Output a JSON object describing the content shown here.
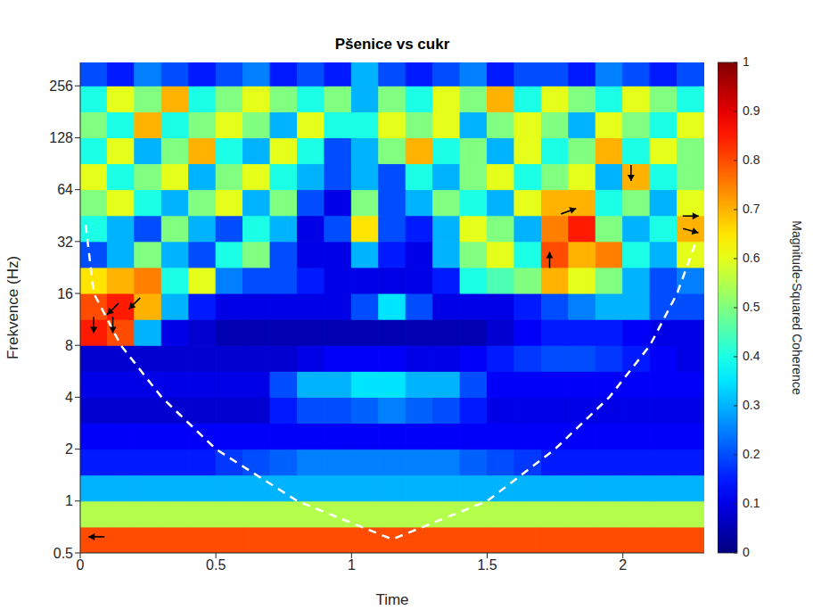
{
  "chart_data": {
    "type": "heatmap",
    "title": "Pšenice vs cukr",
    "x_label": "Time",
    "y_label": "Frekvence (Hz)",
    "log": "y",
    "xlim": [
      0,
      2.3
    ],
    "xticks": [
      0,
      0.5,
      1,
      1.5,
      2
    ],
    "ylim": [
      0.5,
      350
    ],
    "yticks": [
      0.5,
      1,
      2,
      4,
      8,
      16,
      32,
      64,
      128,
      256
    ],
    "cells": {
      "x_edges": [
        0,
        0.1,
        0.2,
        0.3,
        0.4,
        0.5,
        0.6,
        0.7,
        0.8,
        0.9,
        1.0,
        1.1,
        1.2,
        1.3,
        1.4,
        1.5,
        1.6,
        1.7,
        1.8,
        1.9,
        2.0,
        2.1,
        2.2,
        2.3
      ],
      "y_edges": [
        0.5,
        0.707,
        1,
        1.414,
        2,
        2.828,
        4,
        5.657,
        8,
        11.31,
        16,
        22.63,
        32,
        45.25,
        64,
        90.51,
        128,
        181,
        256,
        362
      ],
      "values": [
        [
          0.8,
          0.8,
          0.8,
          0.8,
          0.8,
          0.8,
          0.8,
          0.8,
          0.8,
          0.8,
          0.8,
          0.8,
          0.8,
          0.8,
          0.8,
          0.8,
          0.8,
          0.8,
          0.8,
          0.8,
          0.8,
          0.8,
          0.8
        ],
        [
          0.55,
          0.55,
          0.55,
          0.55,
          0.55,
          0.55,
          0.55,
          0.55,
          0.55,
          0.55,
          0.55,
          0.55,
          0.55,
          0.55,
          0.55,
          0.55,
          0.55,
          0.55,
          0.55,
          0.55,
          0.55,
          0.55,
          0.55
        ],
        [
          0.3,
          0.3,
          0.3,
          0.3,
          0.3,
          0.3,
          0.3,
          0.3,
          0.3,
          0.3,
          0.3,
          0.3,
          0.3,
          0.3,
          0.3,
          0.3,
          0.3,
          0.3,
          0.3,
          0.3,
          0.3,
          0.3,
          0.3
        ],
        [
          0.15,
          0.15,
          0.15,
          0.15,
          0.15,
          0.18,
          0.2,
          0.22,
          0.25,
          0.25,
          0.25,
          0.25,
          0.25,
          0.25,
          0.22,
          0.2,
          0.18,
          0.15,
          0.15,
          0.15,
          0.15,
          0.15,
          0.15
        ],
        [
          0.12,
          0.12,
          0.12,
          0.12,
          0.12,
          0.12,
          0.12,
          0.12,
          0.12,
          0.12,
          0.12,
          0.12,
          0.12,
          0.12,
          0.12,
          0.12,
          0.12,
          0.12,
          0.12,
          0.12,
          0.12,
          0.12,
          0.12
        ],
        [
          0.08,
          0.08,
          0.08,
          0.08,
          0.08,
          0.08,
          0.08,
          0.15,
          0.2,
          0.2,
          0.22,
          0.25,
          0.22,
          0.2,
          0.15,
          0.1,
          0.1,
          0.1,
          0.1,
          0.1,
          0.1,
          0.1,
          0.1
        ],
        [
          0.1,
          0.1,
          0.1,
          0.1,
          0.1,
          0.1,
          0.1,
          0.2,
          0.3,
          0.3,
          0.35,
          0.35,
          0.3,
          0.3,
          0.2,
          0.12,
          0.12,
          0.12,
          0.12,
          0.12,
          0.12,
          0.12,
          0.12
        ],
        [
          0.08,
          0.08,
          0.08,
          0.08,
          0.08,
          0.08,
          0.08,
          0.08,
          0.1,
          0.12,
          0.12,
          0.12,
          0.1,
          0.1,
          0.12,
          0.15,
          0.18,
          0.2,
          0.2,
          0.18,
          0.15,
          0.12,
          0.1
        ],
        [
          0.85,
          0.8,
          0.3,
          0.1,
          0.08,
          0.05,
          0.05,
          0.05,
          0.05,
          0.05,
          0.05,
          0.05,
          0.05,
          0.05,
          0.05,
          0.08,
          0.12,
          0.15,
          0.15,
          0.15,
          0.12,
          0.1,
          0.1
        ],
        [
          0.8,
          0.85,
          0.7,
          0.3,
          0.15,
          0.1,
          0.1,
          0.1,
          0.1,
          0.1,
          0.2,
          0.35,
          0.2,
          0.1,
          0.1,
          0.1,
          0.15,
          0.2,
          0.25,
          0.3,
          0.3,
          0.2,
          0.2
        ],
        [
          0.65,
          0.7,
          0.75,
          0.4,
          0.6,
          0.25,
          0.2,
          0.2,
          0.15,
          0.1,
          0.1,
          0.1,
          0.1,
          0.15,
          0.4,
          0.45,
          0.5,
          0.7,
          0.6,
          0.5,
          0.3,
          0.2,
          0.25
        ],
        [
          0.2,
          0.3,
          0.5,
          0.3,
          0.2,
          0.4,
          0.5,
          0.2,
          0.1,
          0.1,
          0.3,
          0.15,
          0.1,
          0.3,
          0.5,
          0.6,
          0.4,
          0.8,
          0.7,
          0.75,
          0.4,
          0.3,
          0.6
        ],
        [
          0.4,
          0.3,
          0.2,
          0.5,
          0.3,
          0.2,
          0.4,
          0.3,
          0.1,
          0.2,
          0.65,
          0.2,
          0.15,
          0.3,
          0.6,
          0.5,
          0.3,
          0.75,
          0.85,
          0.5,
          0.3,
          0.4,
          0.7
        ],
        [
          0.5,
          0.6,
          0.4,
          0.3,
          0.5,
          0.6,
          0.3,
          0.5,
          0.2,
          0.1,
          0.5,
          0.2,
          0.3,
          0.5,
          0.4,
          0.3,
          0.6,
          0.7,
          0.7,
          0.4,
          0.5,
          0.3,
          0.6
        ],
        [
          0.6,
          0.4,
          0.5,
          0.6,
          0.3,
          0.5,
          0.6,
          0.4,
          0.3,
          0.2,
          0.3,
          0.2,
          0.4,
          0.3,
          0.5,
          0.6,
          0.4,
          0.5,
          0.6,
          0.3,
          0.7,
          0.4,
          0.5
        ],
        [
          0.4,
          0.6,
          0.3,
          0.5,
          0.7,
          0.4,
          0.3,
          0.6,
          0.4,
          0.2,
          0.3,
          0.5,
          0.7,
          0.4,
          0.5,
          0.3,
          0.6,
          0.4,
          0.5,
          0.7,
          0.4,
          0.6,
          0.5
        ],
        [
          0.5,
          0.4,
          0.7,
          0.4,
          0.5,
          0.6,
          0.5,
          0.3,
          0.6,
          0.4,
          0.4,
          0.6,
          0.5,
          0.6,
          0.3,
          0.5,
          0.6,
          0.5,
          0.3,
          0.6,
          0.5,
          0.4,
          0.6
        ],
        [
          0.4,
          0.6,
          0.5,
          0.7,
          0.4,
          0.5,
          0.6,
          0.5,
          0.4,
          0.5,
          0.3,
          0.5,
          0.4,
          0.6,
          0.5,
          0.7,
          0.4,
          0.6,
          0.5,
          0.4,
          0.6,
          0.5,
          0.4
        ],
        [
          0.2,
          0.15,
          0.25,
          0.2,
          0.15,
          0.2,
          0.25,
          0.15,
          0.2,
          0.15,
          0.3,
          0.2,
          0.15,
          0.2,
          0.25,
          0.15,
          0.2,
          0.2,
          0.15,
          0.25,
          0.2,
          0.15,
          0.2
        ]
      ]
    },
    "colorbar": {
      "label": "Magnitude-Squared Coherence",
      "range": [
        0,
        1
      ],
      "ticks": [
        0,
        0.1,
        0.2,
        0.3,
        0.4,
        0.5,
        0.6,
        0.7,
        0.8,
        0.9,
        1
      ]
    },
    "cone_of_influence": {
      "x": [
        0.02,
        0.05,
        0.15,
        0.3,
        0.5,
        0.8,
        1.15,
        1.5,
        1.75,
        1.95,
        2.1,
        2.2,
        2.27
      ],
      "y": [
        40,
        16,
        8,
        4,
        2,
        1,
        0.6,
        1,
        2,
        4,
        8,
        16,
        32
      ],
      "color": "#ffffff",
      "line_style": "dashed"
    },
    "phase_arrows": {
      "x": [
        0.05,
        0.12,
        0.12,
        0.2,
        0.06,
        1.73,
        1.8,
        2.03,
        2.25,
        2.25
      ],
      "y": [
        10.5,
        10.5,
        13,
        14,
        0.62,
        25,
        48,
        80,
        45,
        37
      ],
      "angle": [
        -90,
        -90,
        -135,
        -135,
        180,
        90,
        20,
        -90,
        0,
        -15
      ],
      "color": "#000000"
    }
  }
}
